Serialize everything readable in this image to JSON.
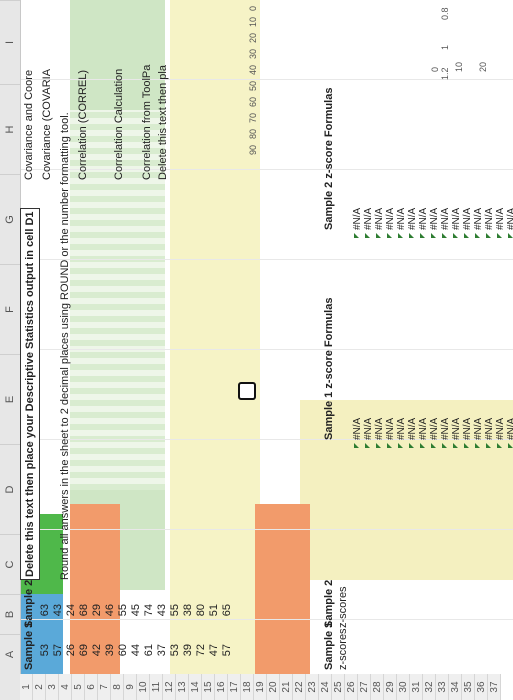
{
  "columns": [
    "A",
    "B",
    "C",
    "D",
    "E",
    "F",
    "G",
    "H",
    "I"
  ],
  "row_numbers": [
    "1",
    "2",
    "3",
    "4",
    "5",
    "6",
    "7",
    "8",
    "9",
    "10",
    "11",
    "12",
    "13",
    "14",
    "15",
    "16",
    "17",
    "18",
    "19",
    "20",
    "21",
    "22",
    "23",
    "24",
    "25",
    "26",
    "27",
    "28",
    "29",
    "30",
    "31",
    "32",
    "33",
    "34",
    "35",
    "36",
    "37"
  ],
  "headers": {
    "sample1": "Sample 1",
    "sample2": "Sample 2"
  },
  "sample1_values": [
    "53",
    "57",
    "26",
    "69",
    "42",
    "39",
    "60",
    "44",
    "61",
    "37",
    "53",
    "39",
    "72",
    "47",
    "57"
  ],
  "sample2_values": [
    "63",
    "43",
    "24",
    "68",
    "29",
    "46",
    "55",
    "45",
    "74",
    "43",
    "55",
    "38",
    "80",
    "51",
    "65"
  ],
  "instructions": {
    "d1": "Delete this text then place your Descriptive Statistics output in cell D1",
    "round": "Round all answers in the sheet to 2 decimal places using ROUND or the number formatting tool."
  },
  "zscore": {
    "label1": "Sample 1",
    "label2": "Sample 2",
    "sub1": "z-scores",
    "sub2": "z-scores",
    "formulas1": "Sample 1 z-score Formulas",
    "formulas2": "Sample 2 z-score Formulas",
    "na": "#N/A"
  },
  "right_panel": {
    "covariance_title": "Covariance and Coore",
    "covariance_tool": "Covariance (COVARIA",
    "correlation_correl": "Correlation (CORREL)",
    "correlation_calc": "Correlation Calculation",
    "correlation_tool": "Correlation from ToolPa",
    "delete_text": "Delete this text then pla"
  },
  "chart_axis_y": [
    "90",
    "80",
    "70",
    "60",
    "50",
    "40",
    "30",
    "20",
    "10",
    "0"
  ],
  "chart_axis_y2": [
    "1.2",
    "1",
    "0.8"
  ],
  "chart_axis_x": [
    "0",
    "10",
    "20"
  ]
}
